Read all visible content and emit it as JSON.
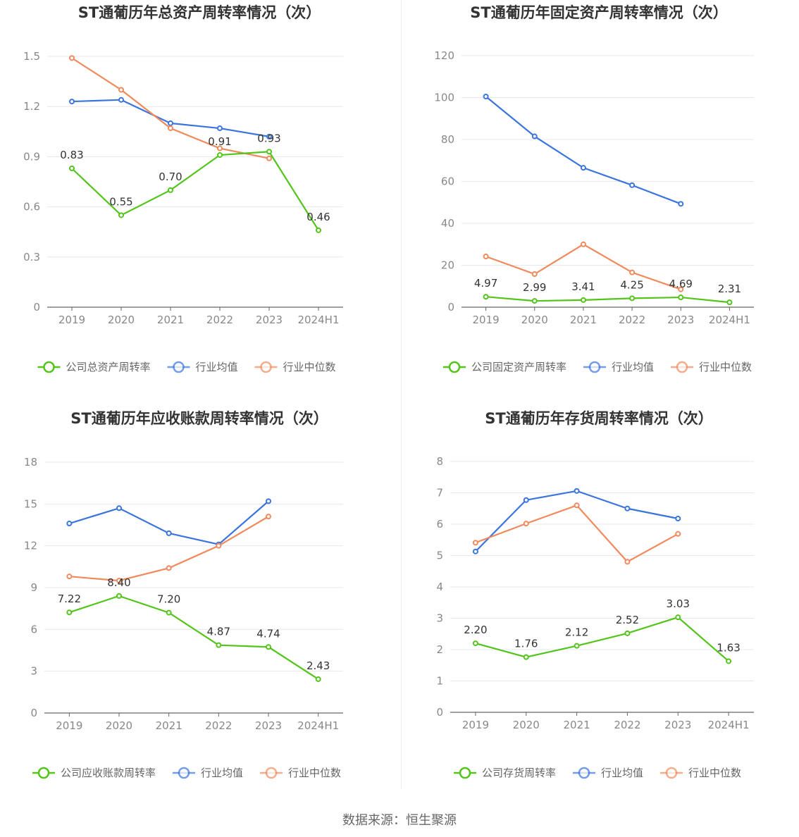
{
  "source": "数据来源：恒生聚源",
  "colors": {
    "company": "#52c41a",
    "avg": "#3a74dd",
    "median": "#f08a5d",
    "grid": "#e6e8f0",
    "axis": "#666666"
  },
  "chart_data": [
    {
      "type": "line",
      "title": "ST通葡历年总资产周转率情况（次）",
      "categories": [
        "2019",
        "2020",
        "2021",
        "2022",
        "2023",
        "2024H1"
      ],
      "ylim": [
        0,
        1.5
      ],
      "yticks": [
        "0",
        "0.3",
        "0.6",
        "0.9",
        "1.2",
        "1.5"
      ],
      "grid": true,
      "legend": "bottom",
      "series": [
        {
          "name": "公司总资产周转率",
          "key": "company",
          "values": [
            0.83,
            0.55,
            0.7,
            0.91,
            0.93,
            0.46
          ],
          "labels": [
            "0.83",
            "0.55",
            "0.70",
            "0.91",
            "0.93",
            "0.46"
          ]
        },
        {
          "name": "行业均值",
          "key": "avg",
          "values": [
            1.23,
            1.24,
            1.1,
            1.07,
            1.02,
            null
          ]
        },
        {
          "name": "行业中位数",
          "key": "median",
          "values": [
            1.49,
            1.3,
            1.07,
            0.95,
            0.89,
            null
          ]
        }
      ]
    },
    {
      "type": "line",
      "title": "ST通葡历年固定资产周转率情况（次）",
      "categories": [
        "2019",
        "2020",
        "2021",
        "2022",
        "2023",
        "2024H1"
      ],
      "ylim": [
        0,
        120
      ],
      "yticks": [
        "0",
        "20",
        "40",
        "60",
        "80",
        "100",
        "120"
      ],
      "grid": true,
      "legend": "bottom",
      "series": [
        {
          "name": "公司固定资产周转率",
          "key": "company",
          "values": [
            4.97,
            2.99,
            3.41,
            4.25,
            4.69,
            2.31
          ],
          "labels": [
            "4.97",
            "2.99",
            "3.41",
            "4.25",
            "4.69",
            "2.31"
          ]
        },
        {
          "name": "行业均值",
          "key": "avg",
          "values": [
            100.5,
            81.5,
            66.5,
            58.2,
            49.3,
            null
          ]
        },
        {
          "name": "行业中位数",
          "key": "median",
          "values": [
            24.2,
            15.8,
            30.0,
            16.6,
            8.5,
            null
          ]
        }
      ]
    },
    {
      "type": "line",
      "title": "ST通葡历年应收账款周转率情况（次）",
      "categories": [
        "2019",
        "2020",
        "2021",
        "2022",
        "2023",
        "2024H1"
      ],
      "ylim": [
        0,
        18
      ],
      "yticks": [
        "0",
        "3",
        "6",
        "9",
        "12",
        "15",
        "18"
      ],
      "grid": true,
      "legend": "bottom",
      "series": [
        {
          "name": "公司应收账款周转率",
          "key": "company",
          "values": [
            7.22,
            8.4,
            7.2,
            4.87,
            4.74,
            2.43
          ],
          "labels": [
            "7.22",
            "8.40",
            "7.20",
            "4.87",
            "4.74",
            "2.43"
          ]
        },
        {
          "name": "行业均值",
          "key": "avg",
          "values": [
            13.6,
            14.7,
            12.9,
            12.1,
            15.2,
            null
          ]
        },
        {
          "name": "行业中位数",
          "key": "median",
          "values": [
            9.8,
            9.5,
            10.4,
            12.0,
            14.1,
            null
          ]
        }
      ]
    },
    {
      "type": "line",
      "title": "ST通葡历年存货周转率情况（次）",
      "categories": [
        "2019",
        "2020",
        "2021",
        "2022",
        "2023",
        "2024H1"
      ],
      "ylim": [
        0,
        8
      ],
      "yticks": [
        "0",
        "1",
        "2",
        "3",
        "4",
        "5",
        "6",
        "7",
        "8"
      ],
      "grid": true,
      "legend": "bottom",
      "series": [
        {
          "name": "公司存货周转率",
          "key": "company",
          "values": [
            2.2,
            1.76,
            2.12,
            2.52,
            3.03,
            1.63
          ],
          "labels": [
            "2.20",
            "1.76",
            "2.12",
            "2.52",
            "3.03",
            "1.63"
          ]
        },
        {
          "name": "行业均值",
          "key": "avg",
          "values": [
            5.13,
            6.77,
            7.06,
            6.5,
            6.18,
            null
          ]
        },
        {
          "name": "行业中位数",
          "key": "median",
          "values": [
            5.41,
            6.02,
            6.6,
            4.8,
            5.69,
            null
          ]
        }
      ]
    }
  ]
}
